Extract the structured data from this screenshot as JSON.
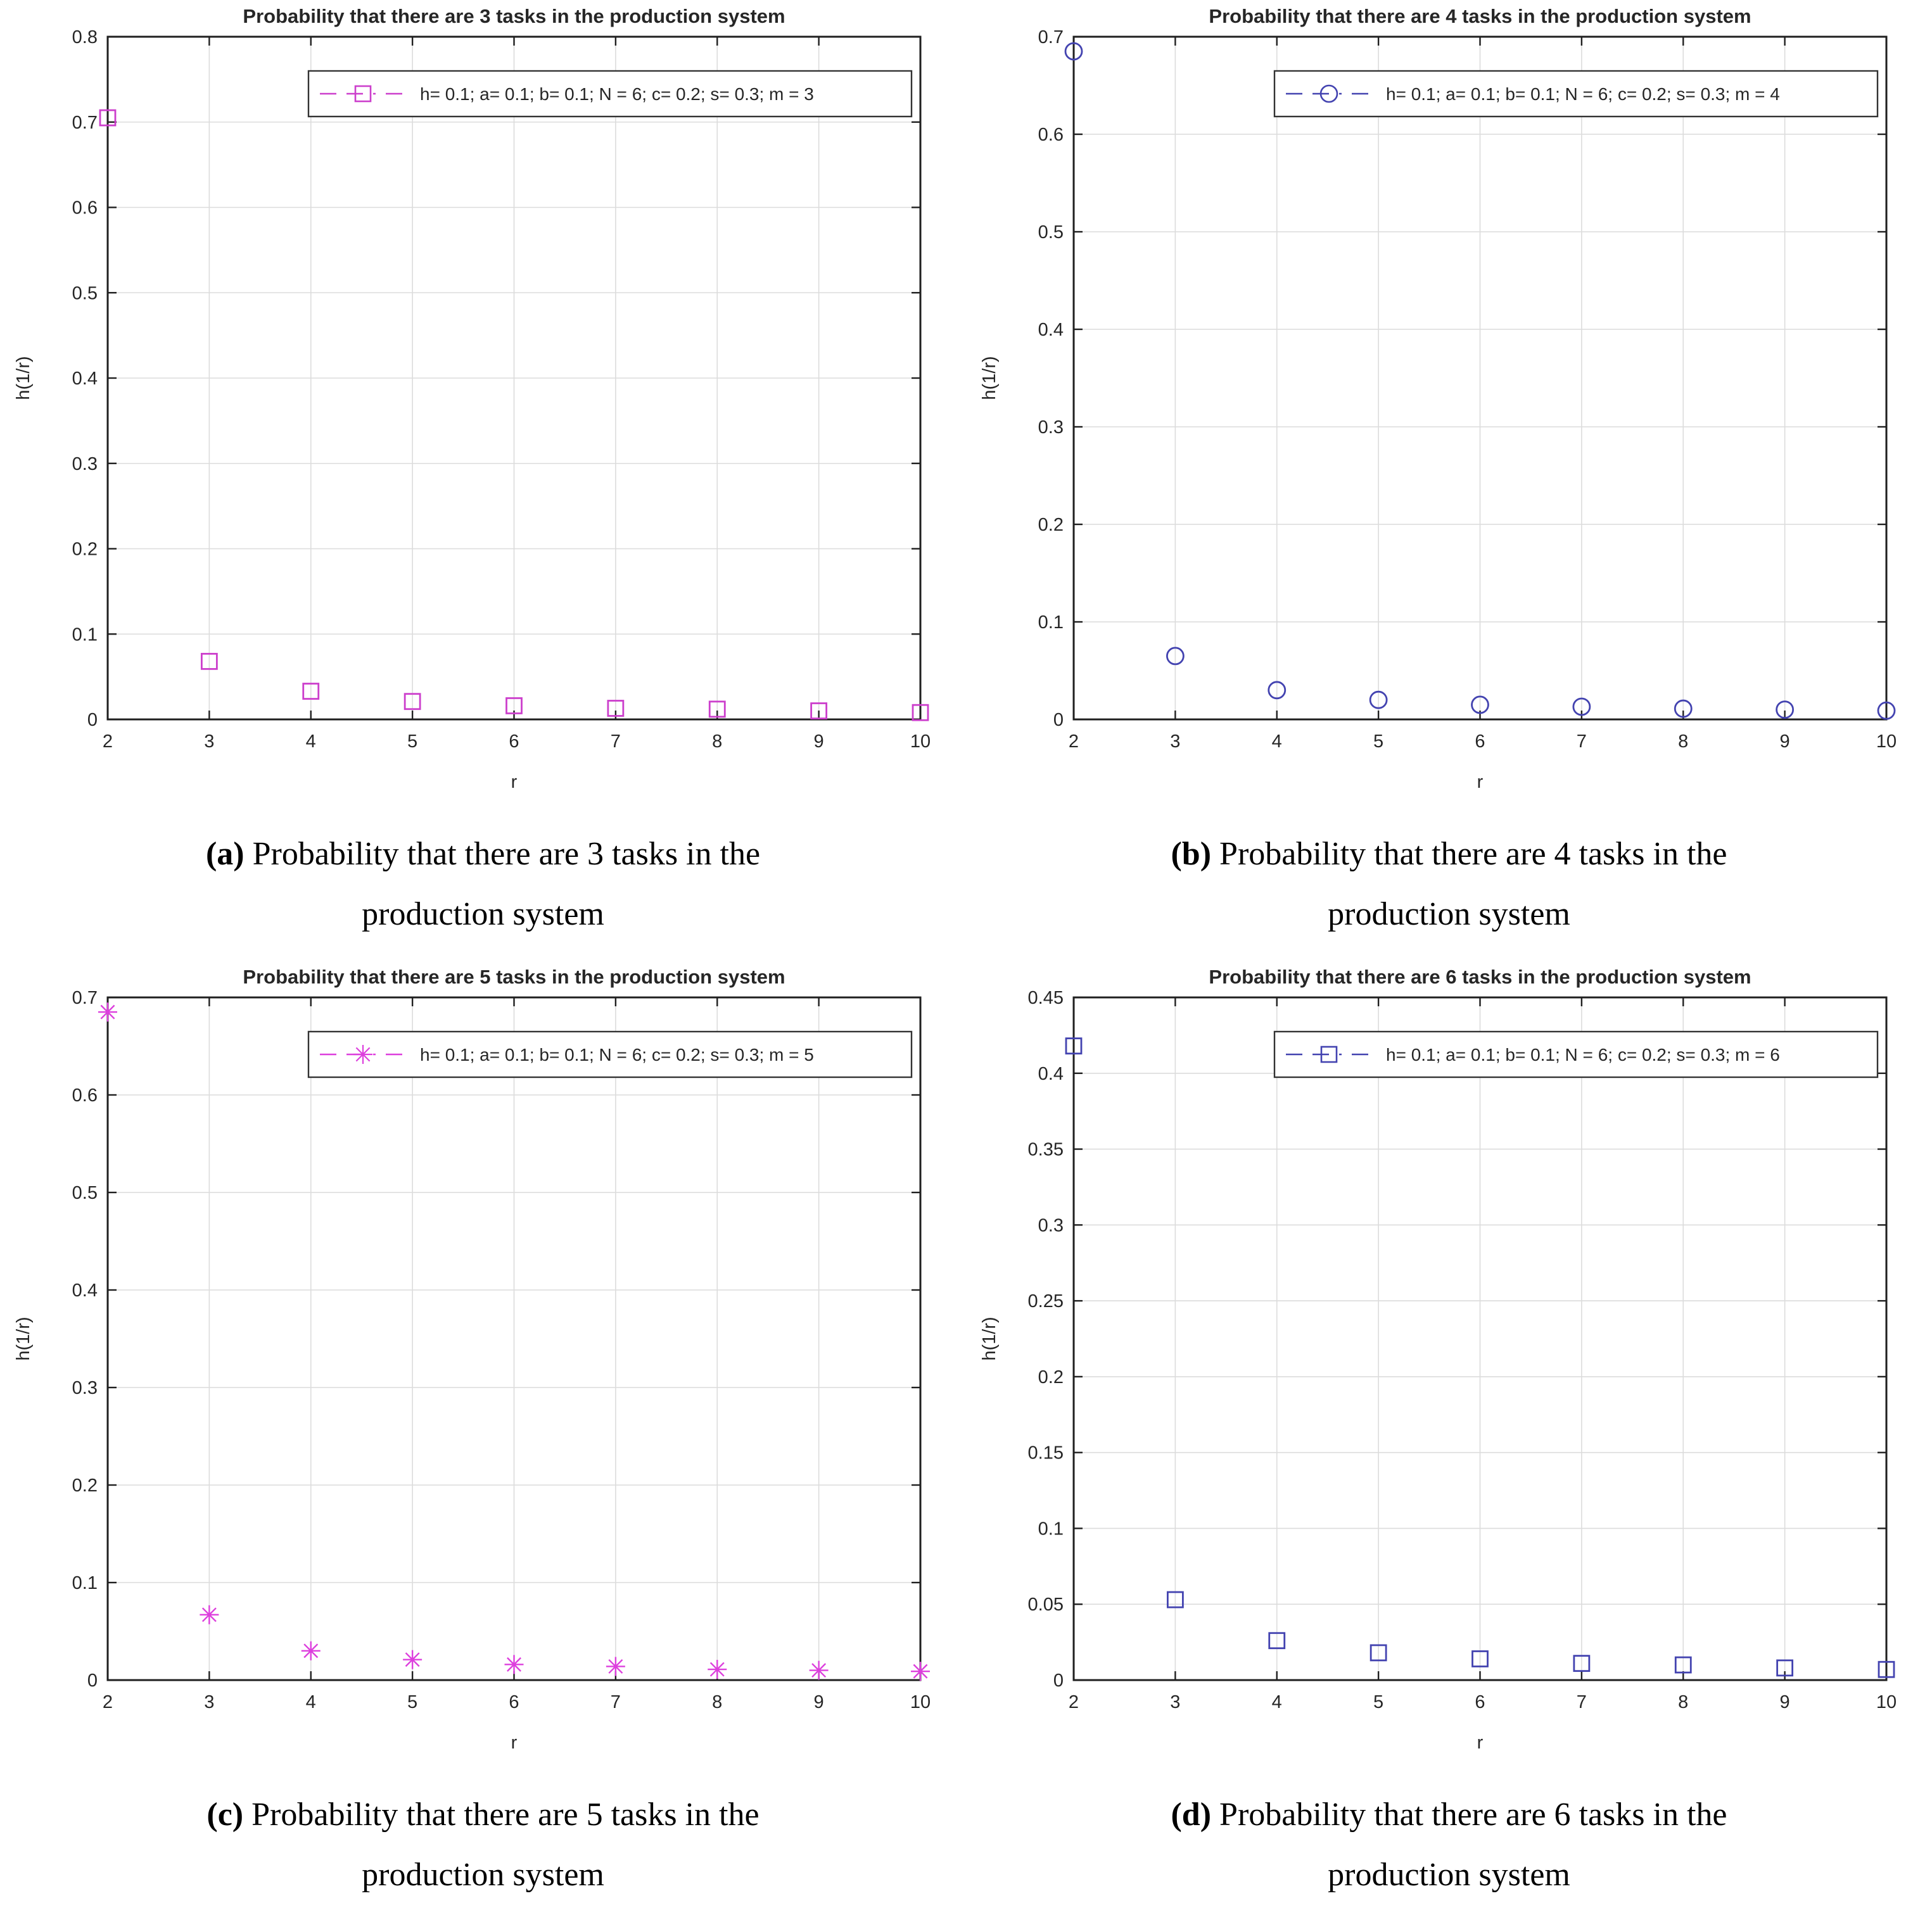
{
  "figure": {
    "panels": [
      {
        "caption": {
          "label": "(a)",
          "line1": "Probability that there are 3 tasks in the",
          "line2": "production system"
        }
      },
      {
        "caption": {
          "label": "(b)",
          "line1": "Probability that there are 4 tasks in the",
          "line2": "production system"
        }
      },
      {
        "caption": {
          "label": "(c)",
          "line1": "Probability that there are 5 tasks in the",
          "line2": "production system"
        }
      },
      {
        "caption": {
          "label": "(d)",
          "line1": "Probability that there are 6 tasks in the",
          "line2": "production system"
        }
      }
    ]
  },
  "chart_data": [
    {
      "type": "scatter",
      "title": "Probability that there are 3 tasks in the production system",
      "xlabel": "r",
      "ylabel": "h(1/r)",
      "x": [
        2,
        3,
        4,
        5,
        6,
        7,
        8,
        9,
        10
      ],
      "y": [
        0.705,
        0.068,
        0.033,
        0.021,
        0.016,
        0.013,
        0.012,
        0.01,
        0.008
      ],
      "xlim": [
        2,
        10
      ],
      "ylim": [
        0,
        0.8
      ],
      "ytick_step": 0.1,
      "xticks": [
        2,
        3,
        4,
        5,
        6,
        7,
        8,
        9,
        10
      ],
      "grid": true,
      "legend": {
        "label": "h= 0.1; a= 0.1; b= 0.1; N = 6; c= 0.2; s= 0.3; m = 3",
        "position": "upper-right"
      },
      "marker": {
        "shape": "square",
        "color": "#cc3fcc"
      },
      "line_style": "dash-dot"
    },
    {
      "type": "scatter",
      "title": "Probability that there are 4 tasks in the production system",
      "xlabel": "r",
      "ylabel": "h(1/r)",
      "x": [
        2,
        3,
        4,
        5,
        6,
        7,
        8,
        9,
        10
      ],
      "y": [
        0.685,
        0.065,
        0.03,
        0.02,
        0.015,
        0.013,
        0.011,
        0.01,
        0.009
      ],
      "xlim": [
        2,
        10
      ],
      "ylim": [
        0,
        0.7
      ],
      "ytick_step": 0.1,
      "xticks": [
        2,
        3,
        4,
        5,
        6,
        7,
        8,
        9,
        10
      ],
      "grid": true,
      "legend": {
        "label": "h= 0.1; a= 0.1; b= 0.1; N = 6; c= 0.2; s= 0.3; m = 4",
        "position": "upper-right"
      },
      "marker": {
        "shape": "circle",
        "color": "#4343b0"
      },
      "line_style": "dash-dot"
    },
    {
      "type": "scatter",
      "title": "Probability that there are 5 tasks in the production system",
      "xlabel": "r",
      "ylabel": "h(1/r)",
      "x": [
        2,
        3,
        4,
        5,
        6,
        7,
        8,
        9,
        10
      ],
      "y": [
        0.685,
        0.067,
        0.03,
        0.021,
        0.016,
        0.014,
        0.011,
        0.01,
        0.009
      ],
      "xlim": [
        2,
        10
      ],
      "ylim": [
        0,
        0.7
      ],
      "ytick_step": 0.1,
      "xticks": [
        2,
        3,
        4,
        5,
        6,
        7,
        8,
        9,
        10
      ],
      "grid": true,
      "legend": {
        "label": "h= 0.1; a= 0.1; b= 0.1; N = 6; c= 0.2; s= 0.3; m = 5",
        "position": "upper-right"
      },
      "marker": {
        "shape": "asterisk",
        "color": "#dd3fdd"
      },
      "line_style": "dash-dot"
    },
    {
      "type": "scatter",
      "title": "Probability that there are 6 tasks in the production system",
      "xlabel": "r",
      "ylabel": "h(1/r)",
      "x": [
        2,
        3,
        4,
        5,
        6,
        7,
        8,
        9,
        10
      ],
      "y": [
        0.418,
        0.053,
        0.026,
        0.018,
        0.014,
        0.011,
        0.01,
        0.008,
        0.007
      ],
      "xlim": [
        2,
        10
      ],
      "ylim": [
        0,
        0.45
      ],
      "ytick_step": 0.05,
      "xticks": [
        2,
        3,
        4,
        5,
        6,
        7,
        8,
        9,
        10
      ],
      "grid": true,
      "legend": {
        "label": "h= 0.1; a= 0.1; b= 0.1; N = 6; c= 0.2; s= 0.3; m = 6",
        "position": "upper-right"
      },
      "marker": {
        "shape": "square",
        "color": "#4343b0"
      },
      "line_style": "dash-dot"
    }
  ],
  "style": {
    "axis_color": "#1f1f1f",
    "grid_color": "#dcdcdc",
    "title_color": "#1a1a1a",
    "legend_border_color": "#333333",
    "background": "#ffffff"
  }
}
